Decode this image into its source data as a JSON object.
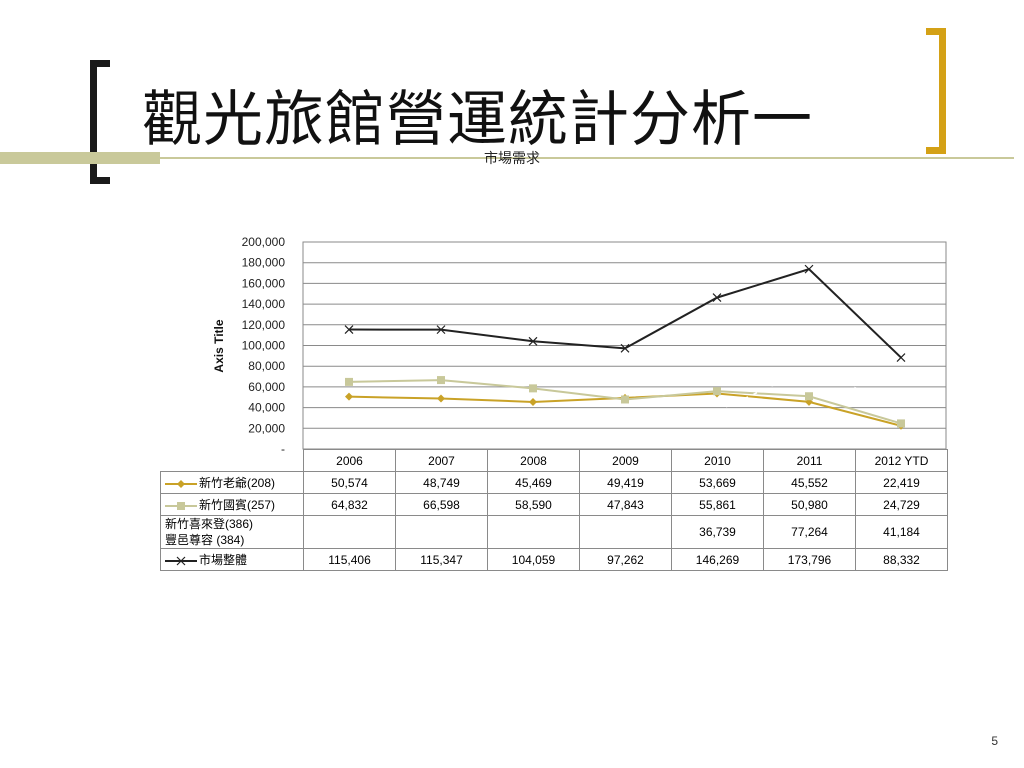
{
  "slide": {
    "title": "觀光旅館營運統計分析一",
    "page_number": "5"
  },
  "chart_data": {
    "type": "line",
    "title": "市場需求",
    "ylabel": "Axis Title",
    "xlabel": "",
    "ylim": [
      0,
      200000
    ],
    "y_ticks": [
      "200,000",
      "180,000",
      "160,000",
      "140,000",
      "120,000",
      "100,000",
      "80,000",
      "60,000",
      "40,000",
      "20,000",
      "-"
    ],
    "categories": [
      "2006",
      "2007",
      "2008",
      "2009",
      "2010",
      "2011",
      "2012 YTD"
    ],
    "grid": true,
    "series": [
      {
        "name": "新竹老爺(208)",
        "color": "#c9a227",
        "marker": "diamond",
        "values": [
          50574,
          48749,
          45469,
          49419,
          53669,
          45552,
          22419
        ],
        "labels": [
          "50,574",
          "48,749",
          "45,469",
          "49,419",
          "53,669",
          "45,552",
          "22,419"
        ]
      },
      {
        "name": "新竹國賓(257)",
        "color": "#c8c89a",
        "marker": "square",
        "values": [
          64832,
          66598,
          58590,
          47843,
          55861,
          50980,
          24729
        ],
        "labels": [
          "64,832",
          "66,598",
          "58,590",
          "47,843",
          "55,861",
          "50,980",
          "24,729"
        ]
      },
      {
        "name": "新竹喜來登(386)",
        "name2": "豐邑尊容 (384)",
        "color": "#ffffff",
        "marker": "none",
        "values": [
          null,
          null,
          null,
          null,
          36739,
          77264,
          41184
        ],
        "labels": [
          "",
          "",
          "",
          "",
          "36,739",
          "77,264",
          "41,184"
        ]
      },
      {
        "name": "市場整體",
        "color": "#222222",
        "marker": "x",
        "values": [
          115406,
          115347,
          104059,
          97262,
          146269,
          173796,
          88332
        ],
        "labels": [
          "115,406",
          "115,347",
          "104,059",
          "97,262",
          "146,269",
          "173,796",
          "88,332"
        ]
      }
    ]
  }
}
